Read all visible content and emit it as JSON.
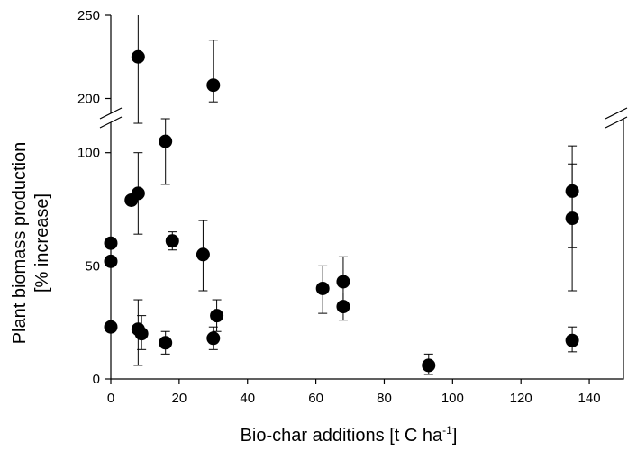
{
  "chart_data": {
    "type": "scatter",
    "xlabel": "Bio-char additions [t C ha",
    "xlabel_sup": "-1",
    "xlabel_end": "]",
    "ylabel_line1": "Plant biomass production",
    "ylabel_line2": "[% increase]",
    "xlim": [
      0,
      150
    ],
    "x_ticks": [
      "0",
      "20",
      "40",
      "60",
      "80",
      "100",
      "120",
      "140"
    ],
    "y_ticks_lower": [
      "0",
      "50",
      "100"
    ],
    "y_ticks_upper": [
      "200",
      "250"
    ],
    "ylim_lower": [
      0,
      115
    ],
    "ylim_upper": [
      190,
      250
    ],
    "axis_break": true,
    "points": [
      {
        "x": 0,
        "y": 60
      },
      {
        "x": 0,
        "y": 52
      },
      {
        "x": 0,
        "y": 23
      },
      {
        "x": 6,
        "y": 79
      },
      {
        "x": 8,
        "y": 82,
        "lo": 64,
        "hi": 100
      },
      {
        "x": 8,
        "y": 225,
        "lo": 113,
        "hi": 250
      },
      {
        "x": 8,
        "y": 22,
        "lo": 6,
        "hi": 35
      },
      {
        "x": 9,
        "y": 20,
        "lo": 13,
        "hi": 28
      },
      {
        "x": 16,
        "y": 105,
        "lo": 86,
        "hi": 115
      },
      {
        "x": 16,
        "y": 16,
        "lo": 11,
        "hi": 21
      },
      {
        "x": 18,
        "y": 61,
        "lo": 57,
        "hi": 65
      },
      {
        "x": 27,
        "y": 55,
        "lo": 39,
        "hi": 70
      },
      {
        "x": 30,
        "y": 208,
        "lo": 198,
        "hi": 235
      },
      {
        "x": 30,
        "y": 18,
        "lo": 13,
        "hi": 23
      },
      {
        "x": 31,
        "y": 28,
        "lo": 21,
        "hi": 35
      },
      {
        "x": 62,
        "y": 40,
        "lo": 29,
        "hi": 50
      },
      {
        "x": 68,
        "y": 43,
        "lo": 33,
        "hi": 54
      },
      {
        "x": 68,
        "y": 32,
        "lo": 26,
        "hi": 38
      },
      {
        "x": 93,
        "y": 6,
        "lo": 2,
        "hi": 11
      },
      {
        "x": 135,
        "y": 83,
        "lo": 58,
        "hi": 103
      },
      {
        "x": 135,
        "y": 71,
        "lo": 39,
        "hi": 95
      },
      {
        "x": 135,
        "y": 17,
        "lo": 12,
        "hi": 23
      }
    ]
  }
}
